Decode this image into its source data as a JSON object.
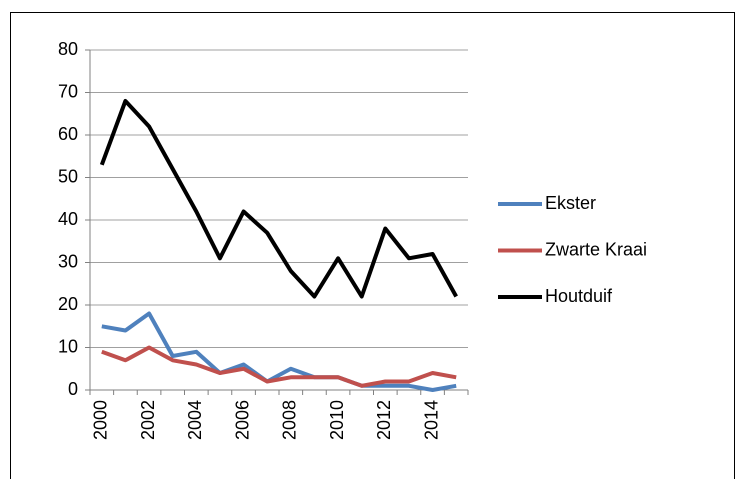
{
  "chart_data": {
    "type": "line",
    "categories": [
      "2000",
      null,
      "2002",
      null,
      "2004",
      null,
      "2006",
      null,
      "2008",
      null,
      "2010",
      null,
      "2012",
      null,
      "2014",
      null
    ],
    "series": [
      {
        "name": "Ekster",
        "color": "#4f81bd",
        "values": [
          15,
          14,
          18,
          8,
          9,
          4,
          6,
          2,
          5,
          3,
          3,
          1,
          1,
          1,
          0,
          1
        ]
      },
      {
        "name": "Zwarte Kraai",
        "color": "#c0504d",
        "values": [
          9,
          7,
          10,
          7,
          6,
          4,
          5,
          2,
          3,
          3,
          3,
          1,
          2,
          2,
          4,
          3
        ]
      },
      {
        "name": "Houtduif",
        "color": "#000000",
        "values": [
          53,
          68,
          62,
          52,
          42,
          31,
          42,
          37,
          28,
          22,
          31,
          22,
          38,
          31,
          32,
          22
        ]
      }
    ],
    "ylim": [
      0,
      80
    ],
    "yticks": [
      0,
      10,
      20,
      30,
      40,
      50,
      60,
      70,
      80
    ],
    "grid": true,
    "legend": "right"
  }
}
